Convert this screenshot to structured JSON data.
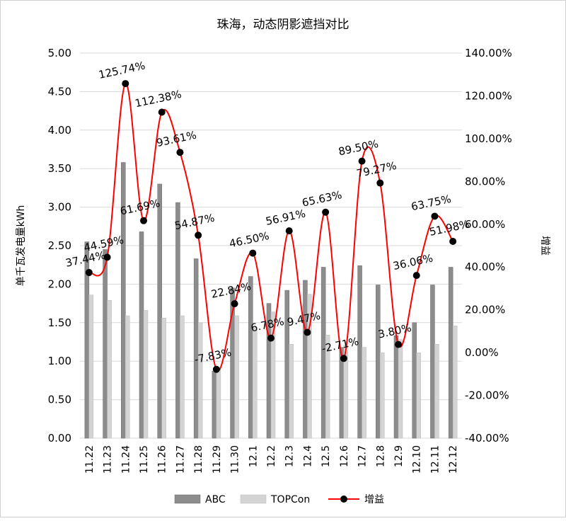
{
  "chart_data": {
    "type": "bar",
    "title": "珠海，动态阴影遮挡对比",
    "ylabel": "单千瓦发电量kWh",
    "y2label": "增益",
    "ylim": [
      0,
      5
    ],
    "y2lim": [
      -0.4,
      1.4
    ],
    "yticks": [
      "0.00",
      "0.50",
      "1.00",
      "1.50",
      "2.00",
      "2.50",
      "3.00",
      "3.50",
      "4.00",
      "4.50",
      "5.00"
    ],
    "y2ticks": [
      "-40.00%",
      "-20.00%",
      "0.00%",
      "20.00%",
      "40.00%",
      "60.00%",
      "80.00%",
      "100.00%",
      "120.00%",
      "140.00%"
    ],
    "grid": true,
    "legend_position": "bottom",
    "categories": [
      "11.22",
      "11.23",
      "11.24",
      "11.25",
      "11.26",
      "11.27",
      "11.28",
      "11.29",
      "11.30",
      "12.1",
      "12.2",
      "12.3",
      "12.4",
      "12.5",
      "12.6",
      "12.7",
      "12.8",
      "12.9",
      "12.10",
      "12.11",
      "12.12"
    ],
    "series": [
      {
        "name": "ABC",
        "type": "bar",
        "color": "#8c8c8c",
        "values": [
          2.55,
          2.45,
          3.58,
          2.68,
          3.3,
          3.06,
          2.33,
          0.87,
          1.95,
          2.1,
          1.75,
          1.92,
          2.05,
          2.22,
          1.18,
          2.24,
          1.99,
          1.33,
          1.5,
          1.99,
          2.22
        ]
      },
      {
        "name": "TOPCon",
        "type": "bar",
        "color": "#d4d4d4",
        "values": [
          1.86,
          1.79,
          1.59,
          1.66,
          1.56,
          1.59,
          1.5,
          0.89,
          1.59,
          1.44,
          1.64,
          1.22,
          1.87,
          1.34,
          1.21,
          1.18,
          1.11,
          1.28,
          1.11,
          1.22,
          1.46
        ]
      },
      {
        "name": "增益",
        "type": "line",
        "color": "#ff0000",
        "axis": "right",
        "values": [
          0.3744,
          0.4459,
          1.2574,
          0.6169,
          1.1238,
          0.9361,
          0.5487,
          -0.0783,
          0.2284,
          0.465,
          0.0678,
          0.5691,
          0.0947,
          0.6563,
          -0.0271,
          0.895,
          0.7927,
          0.038,
          0.3606,
          0.6375,
          0.5198
        ],
        "labels": [
          "37.44%",
          "44.59%",
          "125.74%",
          "61.69%",
          "112.38%",
          "93.61%",
          "54.87%",
          "-7.83%",
          "22.84%",
          "46.50%",
          "6.78%",
          "56.91%",
          "9.47%",
          "65.63%",
          "-2.71%",
          "89.50%",
          "79.27%",
          "3.80%",
          "36.06%",
          "63.75%",
          "51.98%"
        ]
      }
    ]
  }
}
